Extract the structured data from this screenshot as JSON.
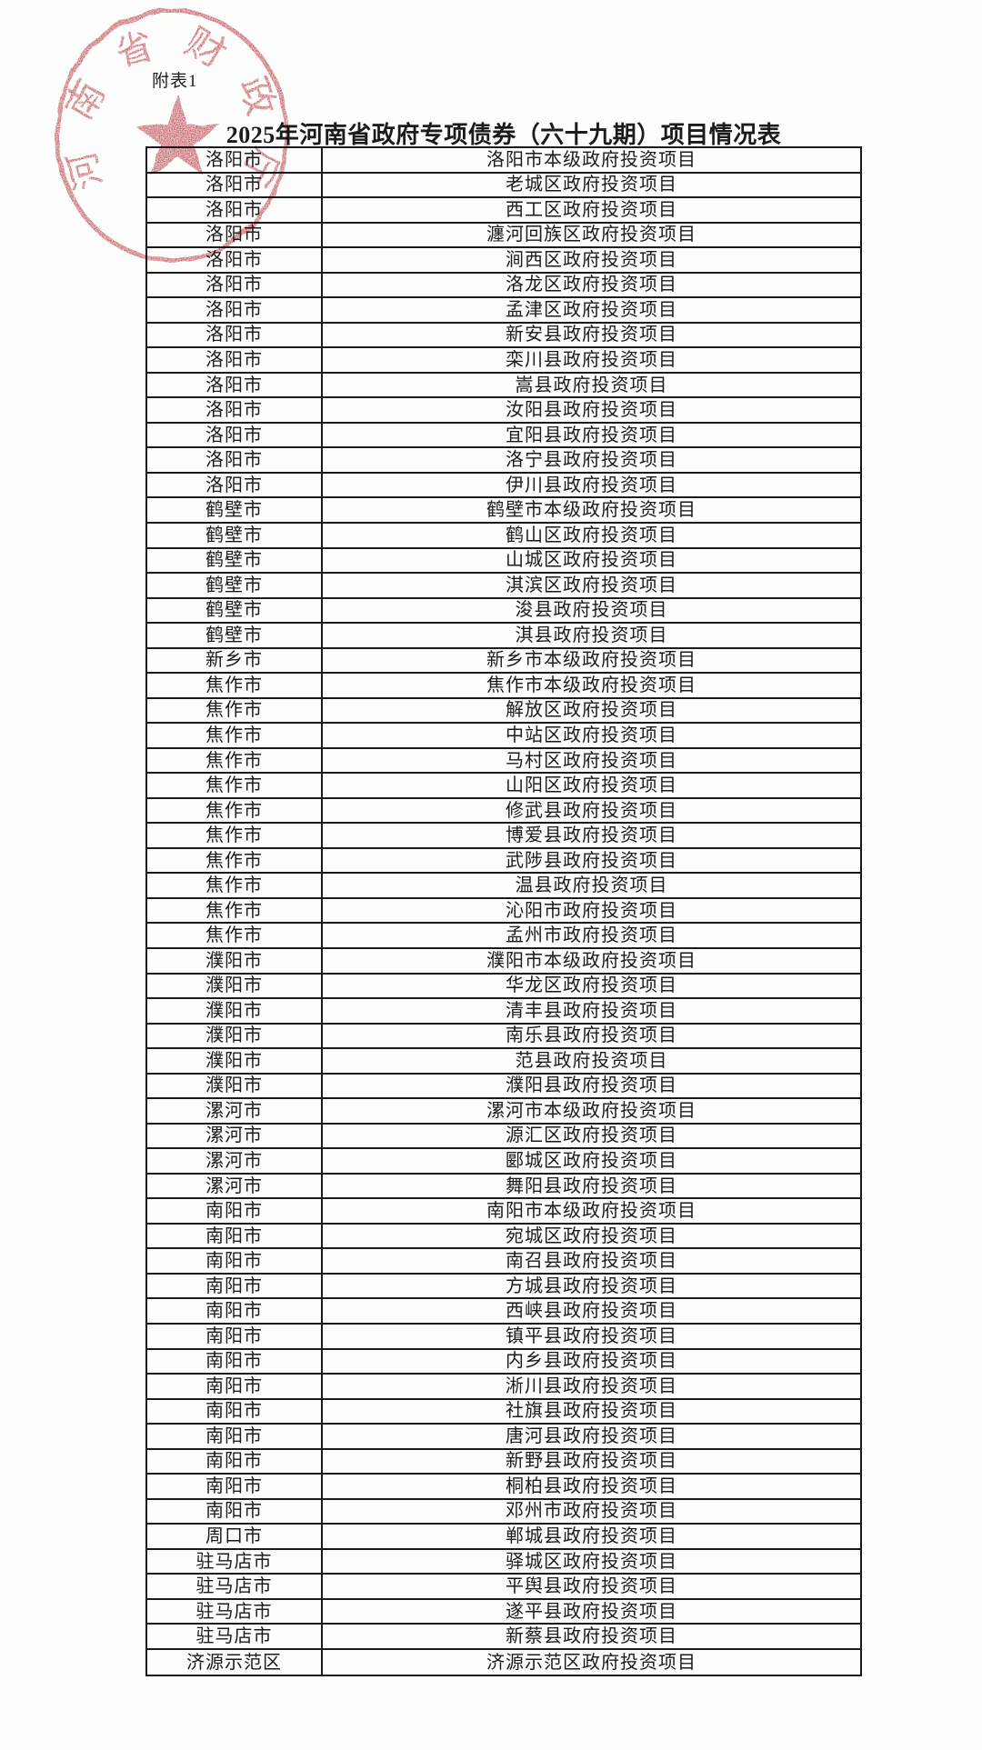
{
  "page": {
    "attachment_label": "附表1",
    "title": "2025年河南省政府专项债券（六十九期）项目情况表"
  },
  "seal": {
    "text": "河南省财政厅",
    "color": "#bf4a53",
    "symbol": "star"
  },
  "table": {
    "columns": [
      "city",
      "project"
    ],
    "rows": [
      {
        "city": "洛阳市",
        "project": "洛阳市本级政府投资项目"
      },
      {
        "city": "洛阳市",
        "project": "老城区政府投资项目"
      },
      {
        "city": "洛阳市",
        "project": "西工区政府投资项目"
      },
      {
        "city": "洛阳市",
        "project": "瀍河回族区政府投资项目"
      },
      {
        "city": "洛阳市",
        "project": "涧西区政府投资项目"
      },
      {
        "city": "洛阳市",
        "project": "洛龙区政府投资项目"
      },
      {
        "city": "洛阳市",
        "project": "孟津区政府投资项目"
      },
      {
        "city": "洛阳市",
        "project": "新安县政府投资项目"
      },
      {
        "city": "洛阳市",
        "project": "栾川县政府投资项目"
      },
      {
        "city": "洛阳市",
        "project": "嵩县政府投资项目"
      },
      {
        "city": "洛阳市",
        "project": "汝阳县政府投资项目"
      },
      {
        "city": "洛阳市",
        "project": "宜阳县政府投资项目"
      },
      {
        "city": "洛阳市",
        "project": "洛宁县政府投资项目"
      },
      {
        "city": "洛阳市",
        "project": "伊川县政府投资项目"
      },
      {
        "city": "鹤壁市",
        "project": "鹤壁市本级政府投资项目"
      },
      {
        "city": "鹤壁市",
        "project": "鹤山区政府投资项目"
      },
      {
        "city": "鹤壁市",
        "project": "山城区政府投资项目"
      },
      {
        "city": "鹤壁市",
        "project": "淇滨区政府投资项目"
      },
      {
        "city": "鹤壁市",
        "project": "浚县政府投资项目"
      },
      {
        "city": "鹤壁市",
        "project": "淇县政府投资项目"
      },
      {
        "city": "新乡市",
        "project": "新乡市本级政府投资项目"
      },
      {
        "city": "焦作市",
        "project": "焦作市本级政府投资项目"
      },
      {
        "city": "焦作市",
        "project": "解放区政府投资项目"
      },
      {
        "city": "焦作市",
        "project": "中站区政府投资项目"
      },
      {
        "city": "焦作市",
        "project": "马村区政府投资项目"
      },
      {
        "city": "焦作市",
        "project": "山阳区政府投资项目"
      },
      {
        "city": "焦作市",
        "project": "修武县政府投资项目"
      },
      {
        "city": "焦作市",
        "project": "博爱县政府投资项目"
      },
      {
        "city": "焦作市",
        "project": "武陟县政府投资项目"
      },
      {
        "city": "焦作市",
        "project": "温县政府投资项目"
      },
      {
        "city": "焦作市",
        "project": "沁阳市政府投资项目"
      },
      {
        "city": "焦作市",
        "project": "孟州市政府投资项目"
      },
      {
        "city": "濮阳市",
        "project": "濮阳市本级政府投资项目"
      },
      {
        "city": "濮阳市",
        "project": "华龙区政府投资项目"
      },
      {
        "city": "濮阳市",
        "project": "清丰县政府投资项目"
      },
      {
        "city": "濮阳市",
        "project": "南乐县政府投资项目"
      },
      {
        "city": "濮阳市",
        "project": "范县政府投资项目"
      },
      {
        "city": "濮阳市",
        "project": "濮阳县政府投资项目"
      },
      {
        "city": "漯河市",
        "project": "漯河市本级政府投资项目"
      },
      {
        "city": "漯河市",
        "project": "源汇区政府投资项目"
      },
      {
        "city": "漯河市",
        "project": "郾城区政府投资项目"
      },
      {
        "city": "漯河市",
        "project": "舞阳县政府投资项目"
      },
      {
        "city": "南阳市",
        "project": "南阳市本级政府投资项目"
      },
      {
        "city": "南阳市",
        "project": "宛城区政府投资项目"
      },
      {
        "city": "南阳市",
        "project": "南召县政府投资项目"
      },
      {
        "city": "南阳市",
        "project": "方城县政府投资项目"
      },
      {
        "city": "南阳市",
        "project": "西峡县政府投资项目"
      },
      {
        "city": "南阳市",
        "project": "镇平县政府投资项目"
      },
      {
        "city": "南阳市",
        "project": "内乡县政府投资项目"
      },
      {
        "city": "南阳市",
        "project": "淅川县政府投资项目"
      },
      {
        "city": "南阳市",
        "project": "社旗县政府投资项目"
      },
      {
        "city": "南阳市",
        "project": "唐河县政府投资项目"
      },
      {
        "city": "南阳市",
        "project": "新野县政府投资项目"
      },
      {
        "city": "南阳市",
        "project": "桐柏县政府投资项目"
      },
      {
        "city": "南阳市",
        "project": "邓州市政府投资项目"
      },
      {
        "city": "周口市",
        "project": "郸城县政府投资项目"
      },
      {
        "city": "驻马店市",
        "project": "驿城区政府投资项目"
      },
      {
        "city": "驻马店市",
        "project": "平舆县政府投资项目"
      },
      {
        "city": "驻马店市",
        "project": "遂平县政府投资项目"
      },
      {
        "city": "驻马店市",
        "project": "新蔡县政府投资项目"
      },
      {
        "city": "济源示范区",
        "project": "济源示范区政府投资项目"
      }
    ]
  }
}
